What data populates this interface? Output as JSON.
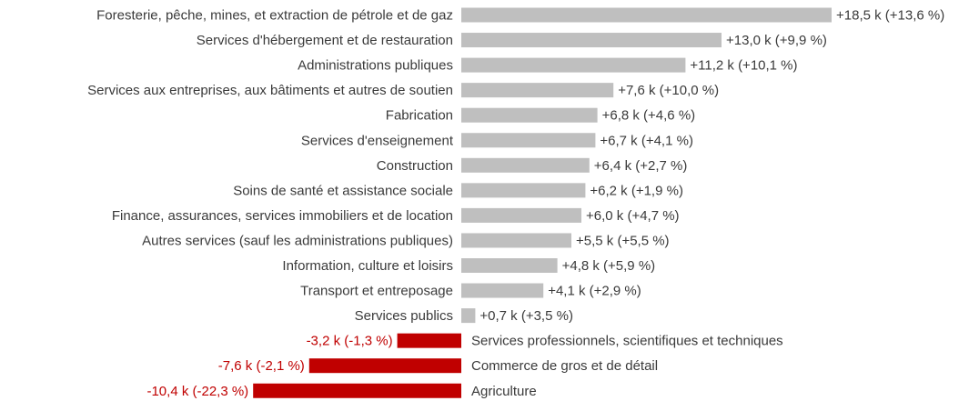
{
  "chart_data": {
    "type": "bar",
    "orientation": "horizontal",
    "title": "",
    "xlabel": "",
    "ylabel": "",
    "colors": {
      "positive": "#bfbfbf",
      "negative": "#c00000",
      "label_negative": "#c00000",
      "label": "#3a3a3a"
    },
    "categories": [
      "Foresterie, pêche, mines, et extraction de pétrole et de gaz",
      "Services d'hébergement et de restauration",
      "Administrations publiques",
      "Services aux entreprises, aux bâtiments et autres de soutien",
      "Fabrication",
      "Services d'enseignement",
      "Construction",
      "Soins de santé et assistance sociale",
      "Finance, assurances, services immobiliers et de location",
      "Autres services (sauf les administrations publiques)",
      "Information, culture et loisirs",
      "Transport et entreposage",
      "Services publics",
      "Services professionnels, scientifiques et techniques",
      "Commerce de gros et de détail",
      "Agriculture"
    ],
    "values": [
      18.5,
      13.0,
      11.2,
      7.6,
      6.8,
      6.7,
      6.4,
      6.2,
      6.0,
      5.5,
      4.8,
      4.1,
      0.7,
      -3.2,
      -7.6,
      -10.4
    ],
    "value_labels": [
      "+18,5 k (+13,6 %)",
      "+13,0 k (+9,9 %)",
      "+11,2 k (+10,1 %)",
      "+7,6 k (+10,0 %)",
      "+6,8 k (+4,6 %)",
      "+6,7 k (+4,1 %)",
      "+6,4 k (+2,7 %)",
      "+6,2 k (+1,9 %)",
      "+6,0 k (+4,7 %)",
      "+5,5 k (+5,5 %)",
      "+4,8 k (+5,9 %)",
      "+4,1 k (+2,9 %)",
      "+0,7 k (+3,5 %)",
      "-3,2 k (-1,3 %)",
      "-7,6 k (-2,1 %)",
      "-10,4 k (-22,3 %)"
    ]
  }
}
